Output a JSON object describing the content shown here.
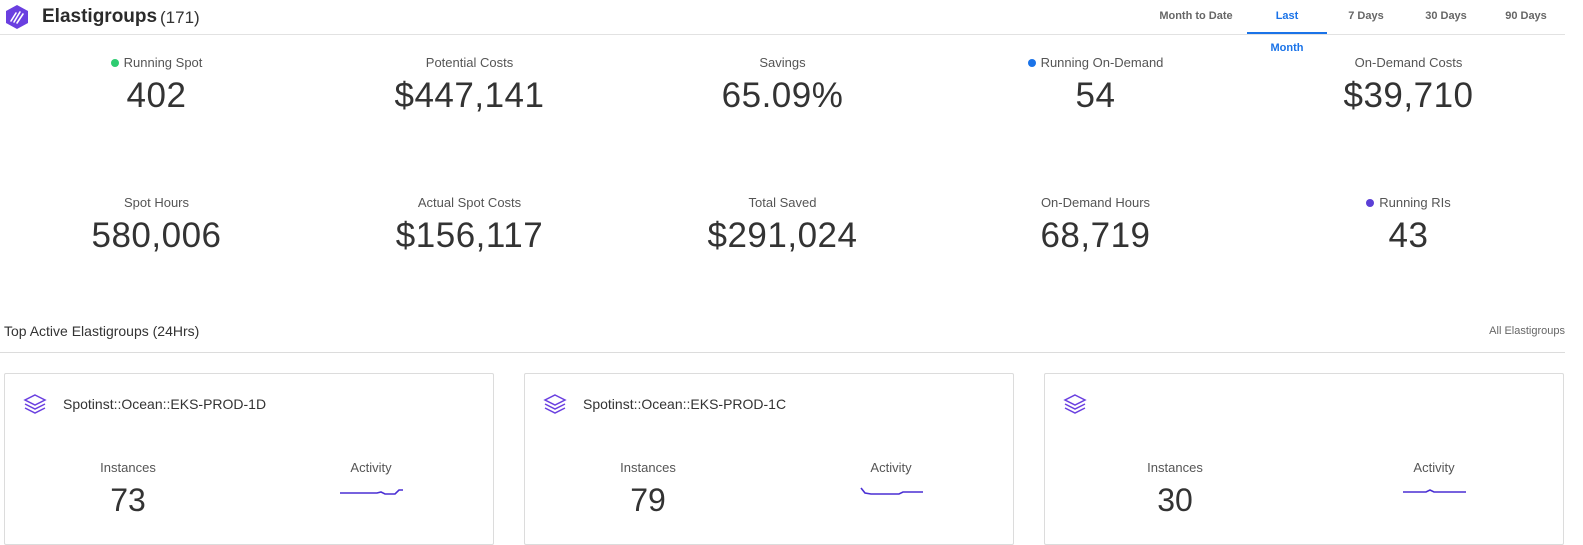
{
  "header": {
    "title": "Elastigroups",
    "count": "(171)",
    "ranges": [
      {
        "label": "Month to Date"
      },
      {
        "label": "Last Month"
      },
      {
        "label": "7 Days"
      },
      {
        "label": "30 Days"
      },
      {
        "label": "90 Days"
      }
    ],
    "active_range": "Last Month"
  },
  "stats": [
    {
      "label": "Running Spot",
      "value": "402",
      "dot": "#2ecc71"
    },
    {
      "label": "Potential Costs",
      "value": "$447,141"
    },
    {
      "label": "Savings",
      "value": "65.09%"
    },
    {
      "label": "Running On-Demand",
      "value": "54",
      "dot": "#1a73e8"
    },
    {
      "label": "On-Demand Costs",
      "value": "$39,710"
    },
    {
      "label": "Spot Hours",
      "value": "580,006"
    },
    {
      "label": "Actual Spot Costs",
      "value": "$156,117"
    },
    {
      "label": "Total Saved",
      "value": "$291,024"
    },
    {
      "label": "On-Demand Hours",
      "value": "68,719"
    },
    {
      "label": "Running RIs",
      "value": "43",
      "dot": "#5b3fd6"
    }
  ],
  "section": {
    "title": "Top Active Elastigroups (24Hrs)",
    "link": "All Elastigroups"
  },
  "cards": [
    {
      "name": "Spotinst::Ocean::EKS-PROD-1D",
      "instances_label": "Instances",
      "instances": "73",
      "activity_label": "Activity",
      "icon": "layers-icon"
    },
    {
      "name": "Spotinst::Ocean::EKS-PROD-1C",
      "instances_label": "Instances",
      "instances": "79",
      "activity_label": "Activity",
      "icon": "layers-icon"
    },
    {
      "name": "",
      "instances_label": "Instances",
      "instances": "30",
      "activity_label": "Activity",
      "icon": "layers-icon"
    }
  ],
  "colors": {
    "accent": "#1a73e8",
    "brand": "#6a3fe0",
    "sparkline": "#4a2fd4"
  }
}
